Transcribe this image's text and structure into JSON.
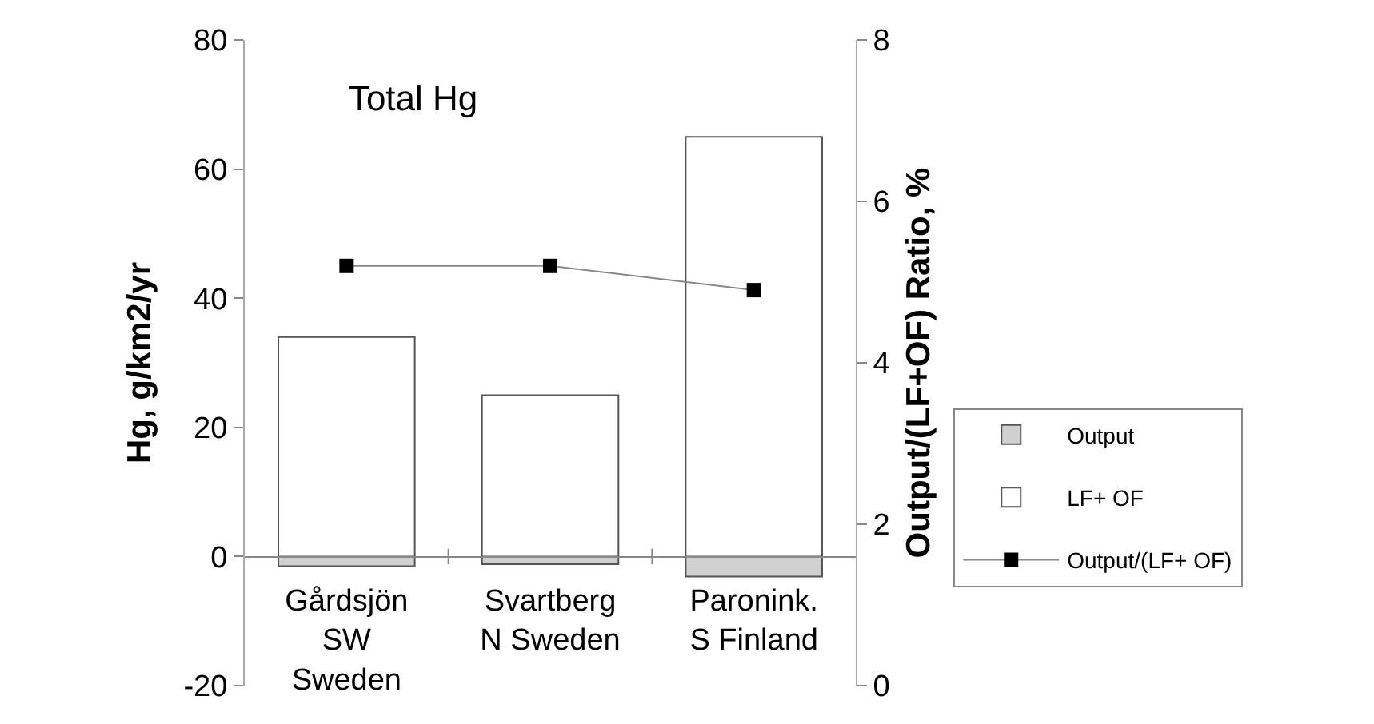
{
  "chart_data": {
    "type": "bar",
    "title": "Total Hg",
    "categories": [
      "Gårdsjön\nSW\nSweden",
      "Svartberg\nN Sweden",
      "Paronink.\nS Finland"
    ],
    "series": [
      {
        "name": "Output",
        "color": "#d0d0d0",
        "values": [
          -1.5,
          -1.2,
          -3.1
        ]
      },
      {
        "name": "LF+ OF",
        "color": "#ffffff",
        "values": [
          34,
          25,
          65
        ]
      },
      {
        "name": "Output/(LF+ OF)",
        "type": "line",
        "axis": "y2",
        "color": "#000000",
        "values": [
          5.2,
          5.2,
          4.9
        ]
      }
    ],
    "stacked": true,
    "ylabel": "Hg, g/km2/yr",
    "y2label": "Output/(LF+OF) Ratio, %",
    "ylim": [
      -20,
      80
    ],
    "yticks": [
      -20,
      0,
      20,
      40,
      60,
      80
    ],
    "y2lim": [
      0,
      8
    ],
    "y2ticks": [
      0,
      2,
      4,
      6,
      8
    ],
    "marker": "square",
    "legend": "right"
  }
}
